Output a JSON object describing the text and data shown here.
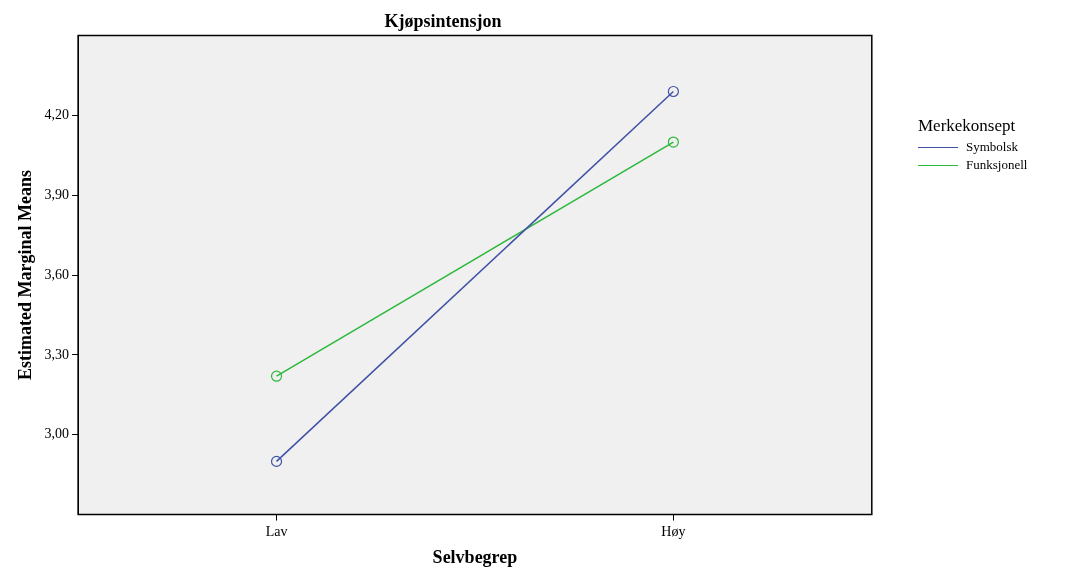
{
  "chart_data": {
    "type": "line",
    "title": "Kjøpsintensjon",
    "xlabel": "Selvbegrep",
    "ylabel": "Estimated Marginal Means",
    "legend_title": "Merkekonsept",
    "categories": [
      "Lav",
      "Høy"
    ],
    "series": [
      {
        "name": "Symbolsk",
        "color": "#3f51a5",
        "values": [
          2.9,
          4.29
        ]
      },
      {
        "name": "Funksjonell",
        "color": "#2cb83c",
        "values": [
          3.22,
          4.1
        ]
      }
    ],
    "ylim": [
      2.7,
      4.5
    ],
    "yticks": [
      {
        "value": 3.0,
        "label": "3,00"
      },
      {
        "value": 3.3,
        "label": "3,30"
      },
      {
        "value": 3.6,
        "label": "3,60"
      },
      {
        "value": 3.9,
        "label": "3,90"
      },
      {
        "value": 4.2,
        "label": "4,20"
      }
    ],
    "grid": false,
    "legend": "right",
    "marker": "circle",
    "line_style": "solid"
  }
}
